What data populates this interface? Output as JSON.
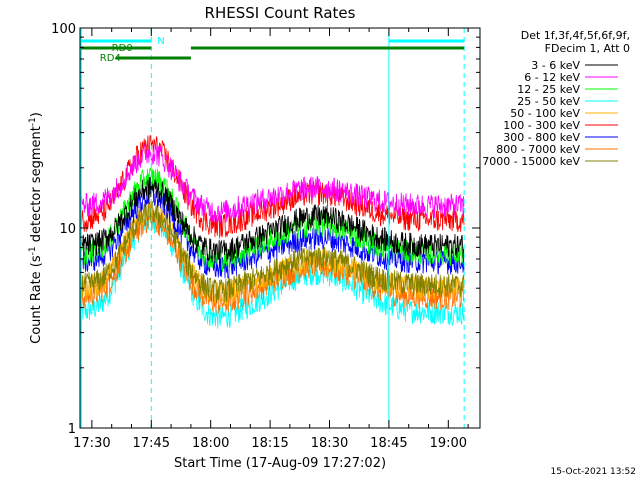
{
  "chart_data": {
    "type": "line",
    "title": "RHESSI Count Rates",
    "xlabel": "Start Time (17-Aug-09 17:27:02)",
    "ylabel": "Count Rate (s",
    "ylabel_sup1": "-1",
    "ylabel_mid": " detector segment",
    "ylabel_sup2": "-1",
    "ylabel_end": ")",
    "yscale": "log",
    "ylim": [
      1,
      100
    ],
    "y_ticks": [
      {
        "value": 1,
        "label": "1"
      },
      {
        "value": 10,
        "label": "10"
      },
      {
        "value": 100,
        "label": "100"
      }
    ],
    "xlim_minutes": [
      -3,
      98
    ],
    "x_ticks": [
      {
        "value": 0,
        "label": "17:30"
      },
      {
        "value": 15,
        "label": "17:45"
      },
      {
        "value": 30,
        "label": "18:00"
      },
      {
        "value": 45,
        "label": "18:15"
      },
      {
        "value": 60,
        "label": "18:30"
      },
      {
        "value": 75,
        "label": "18:45"
      },
      {
        "value": 90,
        "label": "19:00"
      }
    ],
    "legend_header": [
      "Det 1f,3f,4f,5f,6f,9f,",
      "FDecim 1, Att 0"
    ],
    "series": [
      {
        "name": "3 - 6 keV",
        "color": "#000000",
        "base": 8.2,
        "peak1": 16.0,
        "peak2": 11.5
      },
      {
        "name": "6 - 12 keV",
        "color": "#ff00ff",
        "base": 13.0,
        "peak1": 24.0,
        "peak2": 16.0
      },
      {
        "name": "12 - 25 keV",
        "color": "#00ff00",
        "base": 7.5,
        "peak1": 18.0,
        "peak2": 10.5
      },
      {
        "name": "25 - 50 keV",
        "color": "#00ffff",
        "base": 3.8,
        "peak1": 11.0,
        "peak2": 6.0
      },
      {
        "name": "50 - 100 keV",
        "color": "#ffb000",
        "base": 5.0,
        "peak1": 12.5,
        "peak2": 7.0
      },
      {
        "name": "100 - 300 keV",
        "color": "#ff0000",
        "base": 11.0,
        "peak1": 26.0,
        "peak2": 15.0
      },
      {
        "name": "300 - 800 keV",
        "color": "#0000ff",
        "base": 6.8,
        "peak1": 14.5,
        "peak2": 9.0
      },
      {
        "name": "800 - 7000 keV",
        "color": "#ff7000",
        "base": 4.5,
        "peak1": 11.0,
        "peak2": 6.5
      },
      {
        "name": "7000 - 15000 keV",
        "color": "#808000",
        "base": 5.2,
        "peak1": 12.0,
        "peak2": 7.2
      }
    ],
    "flags": [
      {
        "label": "N",
        "color": "#00ffff",
        "segments": [
          [
            -3,
            15
          ],
          [
            75,
            94
          ]
        ]
      },
      {
        "label": "RD0",
        "color": "#008000",
        "segments": [
          [
            -3,
            15
          ],
          [
            25,
            94
          ]
        ]
      },
      {
        "label": "RD4",
        "color": "#008000",
        "segments": [
          [
            6,
            25
          ]
        ]
      }
    ],
    "vlines_dashed_minutes": [
      15,
      94
    ],
    "vlines_solid_minutes": [
      75
    ],
    "timestamp": "15-Oct-2021 13:52"
  }
}
